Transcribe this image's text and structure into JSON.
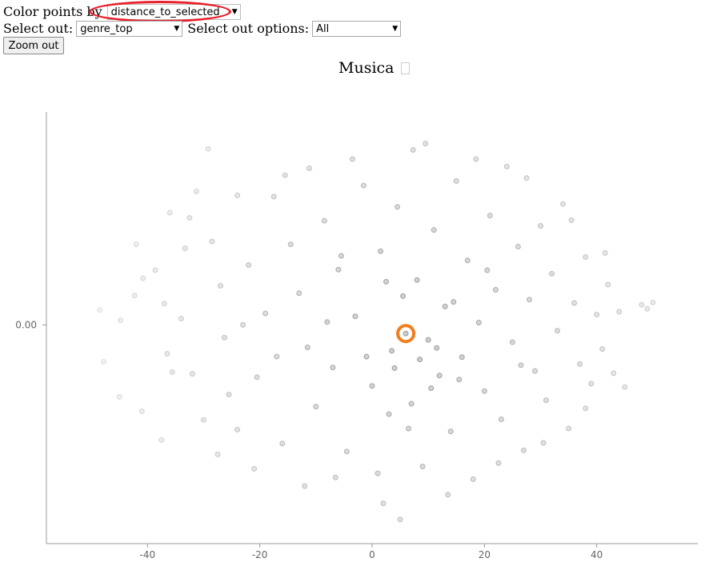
{
  "controls": {
    "color_by_label": "Color points by",
    "color_by_value": "distance_to_selected",
    "select_out_label": "Select out:",
    "select_out_value": "genre_top",
    "options_label": "Select out options:",
    "options_value": "All",
    "zoom_label": "Zoom out"
  },
  "plot": {
    "title": "Musica",
    "selected_point": {
      "x": 6.0,
      "y": -1.5
    },
    "highlight_color": "#e8202a",
    "selection_color": "#f07d1e",
    "point_color": "#808080"
  },
  "chart_data": {
    "type": "scatter",
    "title": "Musica",
    "xlabel": "",
    "ylabel": "",
    "xlim": [
      -58,
      58
    ],
    "ylim": [
      -38,
      37
    ],
    "x_ticks": [
      -40,
      -20,
      0,
      20,
      40
    ],
    "y_ticks": [
      0
    ],
    "x_tick_labels": [
      "-40",
      "-20",
      "0",
      "20",
      "40"
    ],
    "y_tick_labels": [
      "0.00"
    ],
    "grid": false,
    "points": [
      {
        "x": -48.5,
        "y": 2.6
      },
      {
        "x": -44.8,
        "y": 0.8
      },
      {
        "x": -47.8,
        "y": -6.4
      },
      {
        "x": -42.3,
        "y": 5.1
      },
      {
        "x": -40.8,
        "y": 8.1
      },
      {
        "x": -38.6,
        "y": 9.5
      },
      {
        "x": -37.0,
        "y": 3.7
      },
      {
        "x": -36.5,
        "y": -5.0
      },
      {
        "x": -35.6,
        "y": -8.2
      },
      {
        "x": -34.0,
        "y": 1.1
      },
      {
        "x": -33.3,
        "y": 13.3
      },
      {
        "x": -32.5,
        "y": 18.6
      },
      {
        "x": -31.3,
        "y": 23.2
      },
      {
        "x": -29.2,
        "y": 30.6
      },
      {
        "x": -28.5,
        "y": 14.5
      },
      {
        "x": -27.0,
        "y": 6.8
      },
      {
        "x": -26.3,
        "y": -2.2
      },
      {
        "x": -25.5,
        "y": -12.1
      },
      {
        "x": -24.0,
        "y": -18.2
      },
      {
        "x": -22.0,
        "y": 10.4
      },
      {
        "x": -20.5,
        "y": -9.1
      },
      {
        "x": -19.0,
        "y": 2.0
      },
      {
        "x": -17.5,
        "y": 22.3
      },
      {
        "x": -16.0,
        "y": -20.6
      },
      {
        "x": -14.5,
        "y": 14.0
      },
      {
        "x": -13.0,
        "y": 5.5
      },
      {
        "x": -11.5,
        "y": -3.9
      },
      {
        "x": -11.2,
        "y": 27.2
      },
      {
        "x": -10.0,
        "y": -14.2
      },
      {
        "x": -8.5,
        "y": 18.1
      },
      {
        "x": -7.0,
        "y": -7.4
      },
      {
        "x": -6.0,
        "y": 9.6
      },
      {
        "x": -4.5,
        "y": -22.0
      },
      {
        "x": -3.0,
        "y": 1.5
      },
      {
        "x": -1.5,
        "y": 24.2
      },
      {
        "x": 0.0,
        "y": -10.6
      },
      {
        "x": 1.5,
        "y": 12.8
      },
      {
        "x": 2.0,
        "y": -31.0
      },
      {
        "x": 3.5,
        "y": -4.5
      },
      {
        "x": 4.5,
        "y": 20.5
      },
      {
        "x": 5.5,
        "y": 5.0
      },
      {
        "x": 6.0,
        "y": -1.5
      },
      {
        "x": 7.0,
        "y": -13.7
      },
      {
        "x": 7.3,
        "y": 30.4
      },
      {
        "x": 8.0,
        "y": 7.8
      },
      {
        "x": 9.0,
        "y": -24.6
      },
      {
        "x": 10.0,
        "y": -2.6
      },
      {
        "x": 11.0,
        "y": 16.5
      },
      {
        "x": 12.0,
        "y": -8.8
      },
      {
        "x": 13.0,
        "y": 3.2
      },
      {
        "x": 14.0,
        "y": -18.5
      },
      {
        "x": 15.0,
        "y": 25.0
      },
      {
        "x": 16.0,
        "y": -5.6
      },
      {
        "x": 17.0,
        "y": 11.2
      },
      {
        "x": 18.0,
        "y": -26.8
      },
      {
        "x": 19.0,
        "y": 0.4
      },
      {
        "x": 20.0,
        "y": -11.5
      },
      {
        "x": 21.0,
        "y": 19.0
      },
      {
        "x": 22.0,
        "y": 6.1
      },
      {
        "x": 23.0,
        "y": -16.4
      },
      {
        "x": 24.0,
        "y": 27.5
      },
      {
        "x": 25.0,
        "y": -3.0
      },
      {
        "x": 26.0,
        "y": 13.6
      },
      {
        "x": 27.0,
        "y": -21.8
      },
      {
        "x": 28.0,
        "y": 4.4
      },
      {
        "x": 29.0,
        "y": -8.0
      },
      {
        "x": 30.0,
        "y": 17.2
      },
      {
        "x": 31.0,
        "y": -13.1
      },
      {
        "x": 32.0,
        "y": 8.9
      },
      {
        "x": 33.0,
        "y": -1.0
      },
      {
        "x": 34.0,
        "y": 21.0
      },
      {
        "x": 35.0,
        "y": -18.0
      },
      {
        "x": 36.0,
        "y": 3.8
      },
      {
        "x": 37.0,
        "y": -6.8
      },
      {
        "x": 38.0,
        "y": 11.8
      },
      {
        "x": 39.0,
        "y": -10.2
      },
      {
        "x": 40.0,
        "y": 1.8
      },
      {
        "x": 41.0,
        "y": -4.2
      },
      {
        "x": 42.0,
        "y": 7.0
      },
      {
        "x": 43.0,
        "y": -8.4
      },
      {
        "x": 44.0,
        "y": 2.3
      },
      {
        "x": 48.0,
        "y": 3.5
      },
      {
        "x": 49.0,
        "y": 2.8
      },
      {
        "x": 50.0,
        "y": 3.9
      },
      {
        "x": -45.0,
        "y": -12.5
      },
      {
        "x": -41.0,
        "y": -15.0
      },
      {
        "x": -37.5,
        "y": -20.0
      },
      {
        "x": -30.0,
        "y": -16.5
      },
      {
        "x": -27.5,
        "y": -22.5
      },
      {
        "x": -21.0,
        "y": -25.0
      },
      {
        "x": -12.0,
        "y": -28.0
      },
      {
        "x": -6.5,
        "y": -26.5
      },
      {
        "x": 1.0,
        "y": -25.8
      },
      {
        "x": 5.0,
        "y": -33.8
      },
      {
        "x": 13.5,
        "y": -29.5
      },
      {
        "x": 22.5,
        "y": -24.0
      },
      {
        "x": 30.5,
        "y": -20.5
      },
      {
        "x": 38.0,
        "y": -14.5
      },
      {
        "x": 45.0,
        "y": -10.8
      },
      {
        "x": -42.0,
        "y": 14.0
      },
      {
        "x": -36.0,
        "y": 19.5
      },
      {
        "x": -24.0,
        "y": 22.5
      },
      {
        "x": -15.5,
        "y": 26.0
      },
      {
        "x": -3.5,
        "y": 28.8
      },
      {
        "x": 9.5,
        "y": 31.5
      },
      {
        "x": 18.5,
        "y": 28.8
      },
      {
        "x": 27.5,
        "y": 25.5
      },
      {
        "x": 35.5,
        "y": 18.2
      },
      {
        "x": 41.5,
        "y": 12.5
      },
      {
        "x": -8.0,
        "y": 0.5
      },
      {
        "x": -17.0,
        "y": -5.5
      },
      {
        "x": 2.5,
        "y": 7.5
      },
      {
        "x": 14.5,
        "y": 4.0
      },
      {
        "x": -23.0,
        "y": 0.0
      },
      {
        "x": 11.5,
        "y": -4.0
      },
      {
        "x": -5.5,
        "y": 12.0
      },
      {
        "x": 20.5,
        "y": 9.5
      },
      {
        "x": -32.0,
        "y": -8.5
      },
      {
        "x": 26.5,
        "y": -7.0
      },
      {
        "x": 4.0,
        "y": -7.5
      },
      {
        "x": 8.5,
        "y": -6.0
      },
      {
        "x": 10.5,
        "y": -11.0
      },
      {
        "x": 3.0,
        "y": -15.5
      },
      {
        "x": 15.5,
        "y": -9.5
      },
      {
        "x": -1.0,
        "y": -5.5
      },
      {
        "x": 6.5,
        "y": -18.0
      }
    ]
  }
}
